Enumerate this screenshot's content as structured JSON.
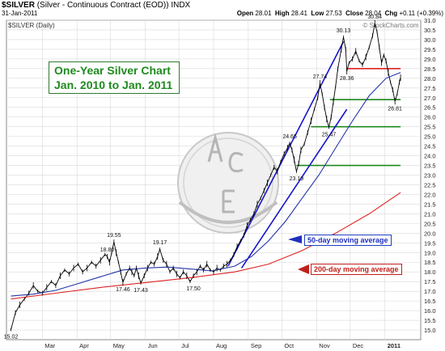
{
  "header": {
    "symbol": "$SILVER",
    "description": "(Silver - Continuous Contract (EOD))",
    "exchange": "INDX",
    "date": "31-Jan-2011",
    "open_label": "Open",
    "open": "28.01",
    "high_label": "High",
    "high": "28.41",
    "low_label": "Low",
    "low": "27.53",
    "close_label": "Close",
    "close": "28.04",
    "chg_label": "Chg",
    "chg": "+0.11 (+0.39%)",
    "legend_text": "$SILVER (Daily)",
    "watermark": "© StockCharts.com"
  },
  "annotation": {
    "line1": "One-Year Silver Chart",
    "line2": "Jan. 2010 to Jan. 2011",
    "ma50_label": "50-day moving average",
    "ma200_label": "200-day moving average"
  },
  "colors": {
    "price": "#000000",
    "ma50": "#2233aa",
    "ma200": "#dd2222",
    "trend": "#1515cc",
    "support": "#1d8a1d",
    "resistance": "#dd2222",
    "grid": "#d9d9d9",
    "annotation_text": "#1e8a1e"
  },
  "chart_data": {
    "type": "line",
    "title": "$SILVER (Daily)",
    "xlabel": "",
    "ylabel": "",
    "ylim": [
      14.5,
      31.0
    ],
    "y_axis_position": "right",
    "grid": true,
    "yticks": [
      "15.0",
      "15.5",
      "16.0",
      "16.5",
      "17.0",
      "17.5",
      "18.0",
      "18.5",
      "19.0",
      "19.5",
      "20.0",
      "20.5",
      "21.0",
      "21.5",
      "22.0",
      "22.5",
      "23.0",
      "23.5",
      "24.0",
      "24.5",
      "25.0",
      "25.5",
      "26.0",
      "26.5",
      "27.0",
      "27.5",
      "28.0",
      "28.5",
      "29.0",
      "29.5",
      "30.0",
      "30.5",
      "31.0"
    ],
    "xticks": [
      {
        "label": "Mar",
        "t": 28
      },
      {
        "label": "Apr",
        "t": 59
      },
      {
        "label": "May",
        "t": 89
      },
      {
        "label": "Jun",
        "t": 120
      },
      {
        "label": "Jul",
        "t": 150
      },
      {
        "label": "Aug",
        "t": 181
      },
      {
        "label": "Sep",
        "t": 212
      },
      {
        "label": "Oct",
        "t": 242
      },
      {
        "label": "Nov",
        "t": 273
      },
      {
        "label": "Dec",
        "t": 303
      },
      {
        "label": "2011",
        "t": 334
      }
    ],
    "t_range": [
      -4,
      366
    ],
    "series": [
      {
        "name": "$SILVER",
        "kind": "price",
        "points": [
          [
            0,
            15.02
          ],
          [
            4,
            15.9
          ],
          [
            8,
            16.3
          ],
          [
            12,
            16.6
          ],
          [
            16,
            16.9
          ],
          [
            20,
            17.3
          ],
          [
            24,
            17.0
          ],
          [
            28,
            16.9
          ],
          [
            32,
            17.2
          ],
          [
            36,
            17.5
          ],
          [
            40,
            17.3
          ],
          [
            44,
            17.8
          ],
          [
            48,
            18.1
          ],
          [
            52,
            17.9
          ],
          [
            56,
            18.2
          ],
          [
            60,
            18.4
          ],
          [
            64,
            18.0
          ],
          [
            68,
            18.2
          ],
          [
            72,
            18.5
          ],
          [
            76,
            18.3
          ],
          [
            80,
            18.6
          ],
          [
            84,
            18.9
          ],
          [
            86,
            18.8
          ],
          [
            88,
            18.5
          ],
          [
            90,
            19.0
          ],
          [
            92,
            19.55
          ],
          [
            94,
            19.0
          ],
          [
            96,
            18.5
          ],
          [
            98,
            18.0
          ],
          [
            100,
            17.46
          ],
          [
            103,
            17.9
          ],
          [
            106,
            18.2
          ],
          [
            108,
            18.0
          ],
          [
            110,
            17.8
          ],
          [
            112,
            18.2
          ],
          [
            114,
            17.8
          ],
          [
            116,
            17.43
          ],
          [
            119,
            17.8
          ],
          [
            122,
            18.2
          ],
          [
            125,
            18.5
          ],
          [
            128,
            18.4
          ],
          [
            131,
            18.8
          ],
          [
            133,
            19.17
          ],
          [
            136,
            18.6
          ],
          [
            139,
            18.4
          ],
          [
            142,
            18.0
          ],
          [
            145,
            18.2
          ],
          [
            148,
            17.9
          ],
          [
            151,
            17.7
          ],
          [
            154,
            18.0
          ],
          [
            157,
            17.8
          ],
          [
            160,
            17.5
          ],
          [
            163,
            17.8
          ],
          [
            166,
            18.0
          ],
          [
            169,
            18.3
          ],
          [
            172,
            18.1
          ],
          [
            175,
            18.4
          ],
          [
            178,
            18.1
          ],
          [
            181,
            18.0
          ],
          [
            184,
            18.2
          ],
          [
            187,
            18.1
          ],
          [
            190,
            18.3
          ],
          [
            193,
            18.4
          ],
          [
            196,
            18.6
          ],
          [
            199,
            18.9
          ],
          [
            202,
            19.3
          ],
          [
            205,
            19.6
          ],
          [
            208,
            19.9
          ],
          [
            211,
            20.4
          ],
          [
            214,
            20.7
          ],
          [
            217,
            21.0
          ],
          [
            220,
            21.5
          ],
          [
            223,
            21.8
          ],
          [
            226,
            22.2
          ],
          [
            229,
            22.6
          ],
          [
            232,
            23.0
          ],
          [
            235,
            23.4
          ],
          [
            238,
            23.2
          ],
          [
            241,
            23.7
          ],
          [
            244,
            24.1
          ],
          [
            247,
            24.4
          ],
          [
            249,
            24.65
          ],
          [
            251,
            24.3
          ],
          [
            253,
            23.8
          ],
          [
            255,
            23.19
          ],
          [
            257,
            23.6
          ],
          [
            259,
            24.3
          ],
          [
            262,
            24.6
          ],
          [
            265,
            25.2
          ],
          [
            268,
            25.8
          ],
          [
            271,
            26.4
          ],
          [
            274,
            27.0
          ],
          [
            276,
            27.74
          ],
          [
            278,
            27.2
          ],
          [
            280,
            26.5
          ],
          [
            282,
            25.9
          ],
          [
            284,
            25.47
          ],
          [
            286,
            26.0
          ],
          [
            288,
            26.8
          ],
          [
            290,
            27.6
          ],
          [
            292,
            28.5
          ],
          [
            295,
            29.5
          ],
          [
            297,
            30.13
          ],
          [
            299,
            29.5
          ],
          [
            300,
            28.36
          ],
          [
            302,
            28.8
          ],
          [
            305,
            29.0
          ],
          [
            308,
            29.4
          ],
          [
            311,
            28.9
          ],
          [
            314,
            28.7
          ],
          [
            317,
            29.1
          ],
          [
            320,
            29.6
          ],
          [
            323,
            30.2
          ],
          [
            325,
            30.84
          ],
          [
            327,
            30.4
          ],
          [
            329,
            29.6
          ],
          [
            331,
            28.8
          ],
          [
            333,
            29.2
          ],
          [
            335,
            28.9
          ],
          [
            337,
            28.3
          ],
          [
            339,
            27.8
          ],
          [
            341,
            27.4
          ],
          [
            343,
            26.81
          ],
          [
            345,
            27.2
          ],
          [
            347,
            27.8
          ],
          [
            348,
            28.04
          ]
        ]
      },
      {
        "name": "50-day moving average",
        "kind": "ma50",
        "points": [
          [
            0,
            16.75
          ],
          [
            20,
            16.85
          ],
          [
            40,
            17.05
          ],
          [
            60,
            17.4
          ],
          [
            80,
            17.75
          ],
          [
            100,
            18.1
          ],
          [
            120,
            18.2
          ],
          [
            140,
            18.25
          ],
          [
            160,
            18.15
          ],
          [
            180,
            18.05
          ],
          [
            200,
            18.3
          ],
          [
            215,
            18.8
          ],
          [
            230,
            19.6
          ],
          [
            245,
            20.6
          ],
          [
            260,
            21.8
          ],
          [
            275,
            23.0
          ],
          [
            290,
            24.4
          ],
          [
            305,
            25.8
          ],
          [
            320,
            27.1
          ],
          [
            335,
            28.0
          ],
          [
            348,
            28.3
          ]
        ]
      },
      {
        "name": "200-day moving average",
        "kind": "ma200",
        "points": [
          [
            0,
            16.6
          ],
          [
            40,
            16.9
          ],
          [
            80,
            17.2
          ],
          [
            120,
            17.45
          ],
          [
            160,
            17.7
          ],
          [
            200,
            18.0
          ],
          [
            230,
            18.4
          ],
          [
            260,
            19.1
          ],
          [
            290,
            20.0
          ],
          [
            320,
            21.0
          ],
          [
            348,
            22.1
          ]
        ]
      }
    ],
    "trendlines": [
      {
        "from": [
          194,
          18.3
        ],
        "to": [
          297,
          29.9
        ]
      },
      {
        "from": [
          206,
          18.2
        ],
        "to": [
          300,
          26.4
        ]
      }
    ],
    "levels": [
      {
        "value": 28.5,
        "from": 300,
        "to": 348,
        "kind": "resistance"
      },
      {
        "value": 26.9,
        "from": 285,
        "to": 348,
        "kind": "support"
      },
      {
        "value": 25.5,
        "from": 268,
        "to": 348,
        "kind": "support"
      },
      {
        "value": 23.5,
        "from": 255,
        "to": 348,
        "kind": "support"
      }
    ],
    "annotations": [
      {
        "t": 0,
        "y": 15.02,
        "text": "15.02",
        "pos": "below"
      },
      {
        "t": 86,
        "y": 18.8,
        "text": "18.80",
        "pos": "above"
      },
      {
        "t": 92,
        "y": 19.55,
        "text": "19.55",
        "pos": "above"
      },
      {
        "t": 100,
        "y": 17.46,
        "text": "17.46",
        "pos": "below"
      },
      {
        "t": 116,
        "y": 17.43,
        "text": "17.43",
        "pos": "below"
      },
      {
        "t": 133,
        "y": 19.17,
        "text": "19.17",
        "pos": "above"
      },
      {
        "t": 163,
        "y": 17.5,
        "text": "17.50",
        "pos": "below"
      },
      {
        "t": 249,
        "y": 24.65,
        "text": "24.65",
        "pos": "above"
      },
      {
        "t": 255,
        "y": 23.19,
        "text": "23.19",
        "pos": "below"
      },
      {
        "t": 276,
        "y": 27.74,
        "text": "27.74",
        "pos": "above"
      },
      {
        "t": 284,
        "y": 25.47,
        "text": "25.47",
        "pos": "below"
      },
      {
        "t": 297,
        "y": 30.13,
        "text": "30.13",
        "pos": "above"
      },
      {
        "t": 300,
        "y": 28.36,
        "text": "28.36",
        "pos": "below"
      },
      {
        "t": 325,
        "y": 30.84,
        "text": "30.84",
        "pos": "above"
      },
      {
        "t": 343,
        "y": 26.81,
        "text": "26.81",
        "pos": "below"
      }
    ]
  }
}
